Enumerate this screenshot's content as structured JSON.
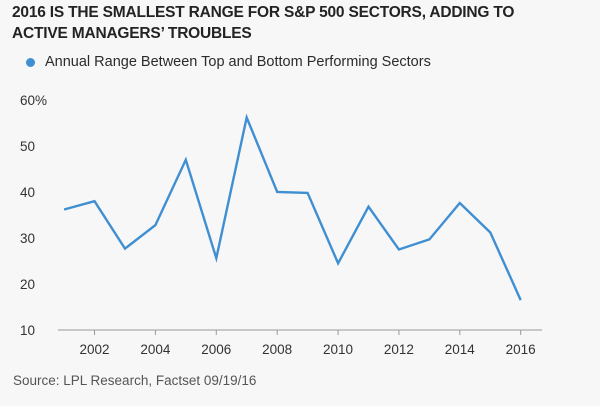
{
  "title_line1": "2016 IS THE SMALLEST RANGE FOR S&P 500 SECTORS, ADDING TO",
  "title_line2": "ACTIVE MANAGERS’ TROUBLES",
  "source": "Source: LPL Research, Factset   09/19/16",
  "chart_data": {
    "type": "line",
    "title": "2016 IS THE SMALLEST RANGE FOR S&P 500 SECTORS, ADDING TO ACTIVE MANAGERS’ TROUBLES",
    "xlabel": "",
    "ylabel": "",
    "x": [
      2001,
      2002,
      2003,
      2004,
      2005,
      2006,
      2007,
      2008,
      2009,
      2010,
      2011,
      2012,
      2013,
      2014,
      2015,
      2016
    ],
    "series": [
      {
        "name": "Annual Range Between Top and Bottom Performing Sectors",
        "color": "#3f8fd2",
        "values": [
          36.2,
          38.0,
          27.7,
          32.8,
          47.0,
          25.6,
          56.2,
          40.0,
          39.8,
          24.5,
          36.8,
          27.5,
          29.7,
          37.6,
          31.2,
          16.5
        ]
      }
    ],
    "x_ticks": [
      "2002",
      "2004",
      "2006",
      "2008",
      "2010",
      "2012",
      "2014",
      "2016"
    ],
    "y_ticks": [
      "10",
      "20",
      "30",
      "40",
      "50",
      "60%"
    ],
    "ylim": [
      10,
      60
    ],
    "xlim": [
      2000.8,
      2016.7
    ],
    "grid": false,
    "legend_position": "top-left"
  }
}
